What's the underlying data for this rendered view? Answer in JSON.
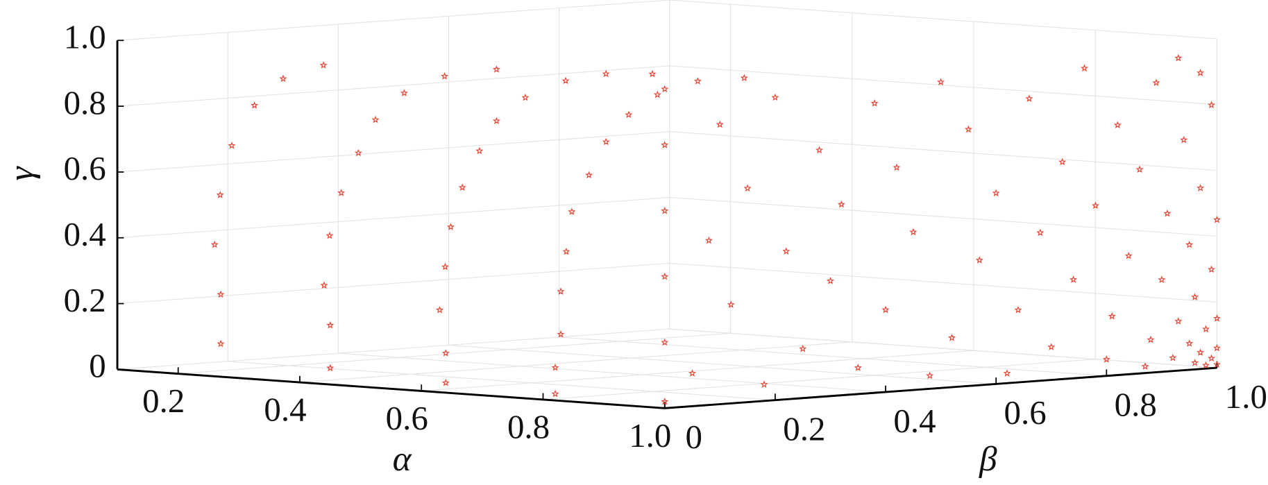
{
  "chart_data": {
    "type": "scatter3d",
    "xlabel": "α",
    "ylabel": "β",
    "zlabel": "γ",
    "color": "#e8402f",
    "marker": "pentagram",
    "grid": true,
    "xlim": [
      0.1,
      1
    ],
    "ylim": [
      0,
      1
    ],
    "zlim": [
      0,
      1
    ],
    "xticks": [
      0.2,
      0.4,
      0.6,
      0.8,
      {
        "value": 1,
        "label": "1.0"
      }
    ],
    "yticks": [
      0,
      0.2,
      0.4,
      0.6,
      0.8,
      {
        "value": 1,
        "label": "1.0"
      }
    ],
    "zticks": [
      0,
      0.2,
      0.4,
      0.6,
      0.8,
      {
        "value": 1,
        "label": "1.0"
      }
    ],
    "x": [
      0.27,
      0.27,
      0.26,
      0.26,
      0.27,
      0.28,
      0.3,
      0.33,
      0.45,
      0.45,
      0.44,
      0.44,
      0.45,
      0.46,
      0.47,
      0.49,
      0.52,
      0.56,
      0.64,
      0.64,
      0.63,
      0.63,
      0.63,
      0.64,
      0.65,
      0.66,
      0.68,
      0.71,
      0.74,
      0.78,
      0.82,
      0.82,
      0.82,
      0.82,
      0.82,
      0.82,
      0.83,
      0.84,
      0.85,
      0.87,
      0.9,
      0.94,
      1,
      1,
      1,
      1,
      1,
      1,
      1,
      1,
      1,
      1,
      1,
      1,
      1,
      1,
      1,
      1,
      1,
      1,
      1,
      1,
      1,
      1,
      1,
      1,
      1,
      1,
      1,
      1,
      1,
      1,
      1,
      1,
      1,
      1,
      1,
      1,
      1,
      1,
      1,
      1,
      1,
      1,
      1,
      1,
      1,
      1,
      1,
      1,
      1,
      1,
      1,
      1,
      1,
      1,
      1,
      1,
      1,
      1,
      1,
      1,
      1,
      1,
      1,
      1,
      1,
      1,
      1,
      1
    ],
    "y": [
      0.0,
      0.0,
      0.0,
      0.01,
      0.02,
      0.05,
      0.08,
      0.12,
      0.0,
      0.0,
      0.0,
      0.01,
      0.02,
      0.04,
      0.06,
      0.09,
      0.13,
      0.18,
      0.0,
      0.0,
      0.0,
      0.01,
      0.02,
      0.03,
      0.05,
      0.07,
      0.1,
      0.14,
      0.18,
      0.22,
      0.0,
      0.0,
      0.01,
      0.01,
      0.02,
      0.03,
      0.05,
      0.07,
      0.1,
      0.13,
      0.17,
      0.21,
      0,
      0,
      0,
      0,
      0,
      0,
      0.05,
      0.08,
      0.1,
      0.12,
      0.15,
      0.18,
      0.2,
      0.22,
      0.25,
      0.28,
      0.3,
      0.32,
      0.35,
      0.38,
      0.4,
      0.42,
      0.45,
      0.48,
      0.5,
      0.52,
      0.55,
      0.57,
      0.6,
      0.62,
      0.64,
      0.66,
      0.68,
      0.7,
      0.72,
      0.74,
      0.76,
      0.78,
      0.8,
      0.81,
      0.82,
      0.84,
      0.86,
      0.87,
      0.88,
      0.89,
      0.9,
      0.91,
      0.92,
      0.93,
      0.94,
      0.95,
      0.95,
      0.96,
      0.96,
      0.97,
      0.97,
      0.98,
      0.98,
      0.99,
      0.99,
      1,
      1,
      1,
      1,
      0.99,
      0.97,
      0.93
    ],
    "z": [
      0.1,
      0.25,
      0.4,
      0.55,
      0.7,
      0.82,
      0.9,
      0.94,
      0.05,
      0.18,
      0.3,
      0.45,
      0.58,
      0.7,
      0.8,
      0.88,
      0.93,
      0.95,
      0.03,
      0.12,
      0.25,
      0.38,
      0.5,
      0.62,
      0.73,
      0.82,
      0.89,
      0.94,
      0.96,
      0.96,
      0.02,
      0.1,
      0.2,
      0.33,
      0.45,
      0.57,
      0.68,
      0.78,
      0.86,
      0.92,
      0.96,
      0.97,
      0.02,
      0.2,
      0.4,
      0.6,
      0.8,
      0.97,
      0.1,
      0.5,
      0.85,
      0.3,
      0.65,
      0.05,
      0.92,
      0.45,
      0.15,
      0.75,
      0.35,
      0.58,
      0.08,
      0.88,
      0.25,
      0.68,
      0.48,
      0.04,
      0.93,
      0.15,
      0.78,
      0.38,
      0.58,
      0.03,
      0.22,
      0.86,
      0.45,
      0.1,
      0.66,
      0.3,
      0.94,
      0.52,
      0.05,
      0.18,
      0.76,
      0.36,
      0.62,
      0.02,
      0.1,
      0.88,
      0.28,
      0.48,
      0.04,
      0.15,
      0.7,
      0.08,
      0.38,
      0.02,
      0.22,
      0.55,
      0.05,
      0.12,
      0.01,
      0.03,
      0.3,
      0.01,
      0.06,
      0.15,
      0.45,
      0.8,
      0.9,
      0.95
    ]
  }
}
